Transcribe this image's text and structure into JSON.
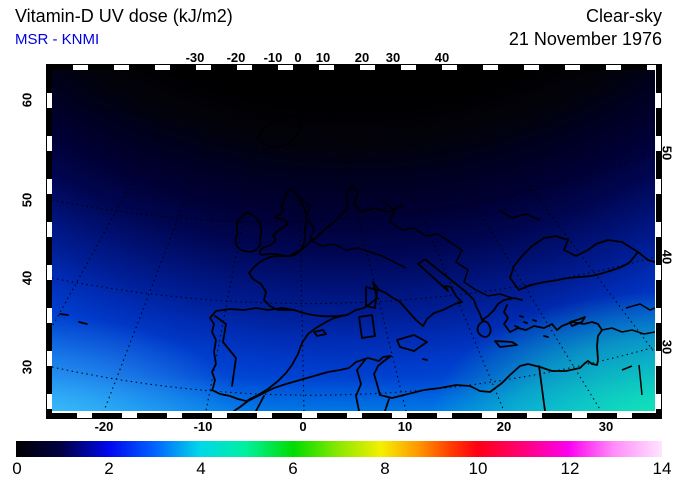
{
  "header": {
    "title": "Vitamin-D UV dose (kJ/m2)",
    "source": "MSR - KNMI",
    "source_color": "#0000e0",
    "condition": "Clear-sky",
    "date": "21 November 1976"
  },
  "map_axes": {
    "top_ticks": [
      {
        "t": "-30",
        "p": 195
      },
      {
        "t": "-20",
        "p": 236
      },
      {
        "t": "-10",
        "p": 273
      },
      {
        "t": "0",
        "p": 298
      },
      {
        "t": "10",
        "p": 323
      },
      {
        "t": "20",
        "p": 362
      },
      {
        "t": "30",
        "p": 393
      },
      {
        "t": "40",
        "p": 442
      }
    ],
    "bottom_ticks": [
      {
        "t": "-20",
        "p": 104
      },
      {
        "t": "-10",
        "p": 203
      },
      {
        "t": "0",
        "p": 303
      },
      {
        "t": "10",
        "p": 405
      },
      {
        "t": "20",
        "p": 504
      },
      {
        "t": "30",
        "p": 606
      }
    ],
    "left_ticks": [
      {
        "t": "60",
        "p": 100
      },
      {
        "t": "50",
        "p": 200
      },
      {
        "t": "40",
        "p": 278
      },
      {
        "t": "30",
        "p": 367
      }
    ],
    "right_ticks": [
      {
        "t": "50",
        "p": 153
      },
      {
        "t": "40",
        "p": 257
      },
      {
        "t": "30",
        "p": 347
      }
    ]
  },
  "colorbar": {
    "min": 0,
    "max": 14,
    "units": "kJ/m2",
    "labels": [
      {
        "t": "0",
        "p": 17
      },
      {
        "t": "2",
        "p": 109
      },
      {
        "t": "4",
        "p": 201
      },
      {
        "t": "6",
        "p": 293
      },
      {
        "t": "8",
        "p": 385
      },
      {
        "t": "10",
        "p": 478
      },
      {
        "t": "12",
        "p": 570
      },
      {
        "t": "14",
        "p": 662
      }
    ],
    "stops": [
      [
        0,
        "#000000"
      ],
      [
        0.07,
        "#000044"
      ],
      [
        0.145,
        "#0008f0"
      ],
      [
        0.215,
        "#0064ff"
      ],
      [
        0.285,
        "#00d8e8"
      ],
      [
        0.355,
        "#00f0a0"
      ],
      [
        0.43,
        "#00dc00"
      ],
      [
        0.5,
        "#8ce800"
      ],
      [
        0.565,
        "#f4f000"
      ],
      [
        0.625,
        "#ff9400"
      ],
      [
        0.675,
        "#ff3800"
      ],
      [
        0.715,
        "#ff0014"
      ],
      [
        0.785,
        "#ff0078"
      ],
      [
        0.855,
        "#fb00f0"
      ],
      [
        0.925,
        "#ff8cf8"
      ],
      [
        1,
        "#ffe4ff"
      ]
    ]
  },
  "chart_data": {
    "type": "heatmap",
    "title": "Vitamin-D UV dose (kJ/m2)",
    "source": "MSR - KNMI",
    "sky_condition": "Clear-sky",
    "date": "21 November 1976",
    "region": "Europe, Mediterranean and North Africa with national coastlines and borders",
    "x_axis": {
      "units": "degrees longitude",
      "ticks_top": [
        -30,
        -20,
        -10,
        0,
        10,
        20,
        30,
        40
      ],
      "ticks_bottom": [
        -20,
        -10,
        0,
        10,
        20,
        30
      ]
    },
    "y_axis": {
      "units": "degrees latitude",
      "ticks_left": [
        60,
        50,
        40,
        30
      ],
      "ticks_right": [
        50,
        40,
        30
      ]
    },
    "colorbar": {
      "units": "kJ/m2",
      "range": [
        0,
        14
      ],
      "ticks": [
        0,
        2,
        4,
        6,
        8,
        10,
        12,
        14
      ]
    },
    "estimated_dose_by_latitude": [
      {
        "lat_N": 60,
        "dose": 0.0
      },
      {
        "lat_N": 55,
        "dose": 0.2
      },
      {
        "lat_N": 50,
        "dose": 0.5
      },
      {
        "lat_N": 45,
        "dose": 0.9
      },
      {
        "lat_N": 40,
        "dose": 1.4
      },
      {
        "lat_N": 35,
        "dose": 1.9
      },
      {
        "lat_N": 30,
        "dose": 2.4
      },
      {
        "lat_N": 28,
        "dose": 3.2
      }
    ],
    "notes": "Dose rises smoothly from 0 kJ/m2 (black) in northern Europe to ~3 kJ/m2 (cyan-green) at the southern edge; iso-dose lines follow curved latitude arcs of the conic-style projection; grid shown as dotted graticule every 10 degrees."
  }
}
